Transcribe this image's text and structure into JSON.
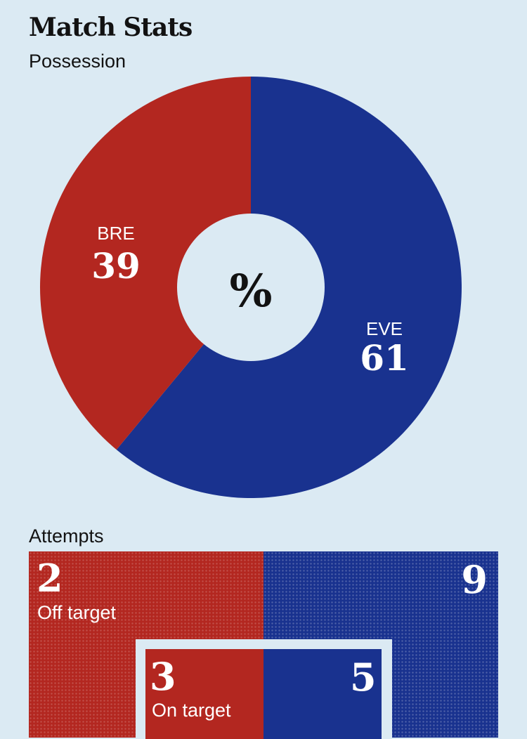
{
  "title": "Match Stats",
  "possession": {
    "label": "Possession",
    "center_symbol": "%",
    "teams": [
      {
        "abbr": "BRE",
        "value": 39,
        "color": "#b32720"
      },
      {
        "abbr": "EVE",
        "value": 61,
        "color": "#19328f"
      }
    ]
  },
  "attempts": {
    "label": "Attempts",
    "off_target": {
      "label": "Off target",
      "home": 2,
      "away": 9
    },
    "on_target": {
      "label": "On target",
      "home": 3,
      "away": 5
    }
  },
  "colors": {
    "home": "#b32720",
    "away": "#19328f",
    "background": "#dbeaf3"
  },
  "chart_data": {
    "type": "pie",
    "title": "Possession",
    "categories": [
      "BRE",
      "EVE"
    ],
    "values": [
      39,
      61
    ],
    "unit": "%"
  }
}
